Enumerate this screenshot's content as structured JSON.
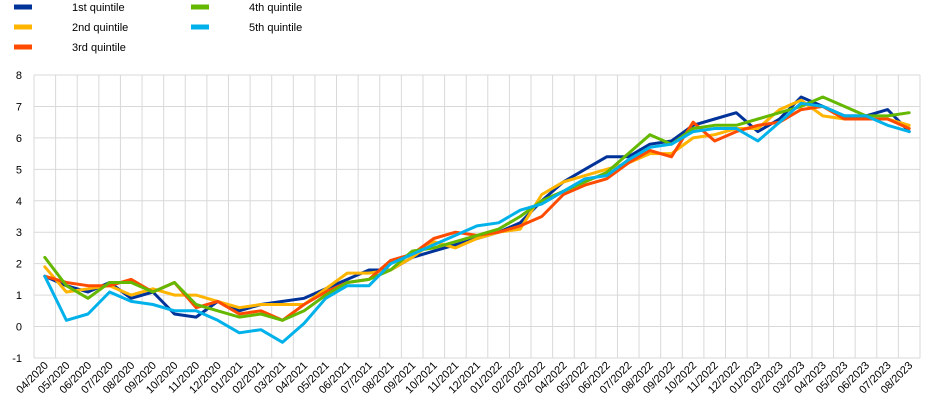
{
  "chart_data": {
    "type": "line",
    "title": "",
    "xlabel": "",
    "ylabel": "",
    "ylim": [
      -1,
      8
    ],
    "yticks": [
      "-1",
      "0",
      "1",
      "2",
      "3",
      "4",
      "5",
      "6",
      "7",
      "8"
    ],
    "grid": true,
    "legend_position": "top-left",
    "categories": [
      "04/2020",
      "05/2020",
      "06/2020",
      "07/2020",
      "08/2020",
      "09/2020",
      "10/2020",
      "11/2020",
      "12/2020",
      "01/2021",
      "02/2021",
      "03/2021",
      "04/2021",
      "05/2021",
      "06/2021",
      "07/2021",
      "08/2021",
      "09/2021",
      "10/2021",
      "11/2021",
      "12/2021",
      "01/2022",
      "02/2022",
      "03/2022",
      "04/2022",
      "05/2022",
      "06/2022",
      "07/2022",
      "08/2022",
      "09/2022",
      "10/2022",
      "11/2022",
      "12/2022",
      "01/2023",
      "02/2023",
      "03/2023",
      "04/2023",
      "05/2023",
      "06/2023",
      "07/2023",
      "08/2023"
    ],
    "series": [
      {
        "name": "1st quintile",
        "color": "#003399",
        "values": [
          1.6,
          1.3,
          1.1,
          1.4,
          0.9,
          1.1,
          0.4,
          0.3,
          0.8,
          0.5,
          0.7,
          0.8,
          0.9,
          1.2,
          1.5,
          1.8,
          1.8,
          2.2,
          2.4,
          2.6,
          2.8,
          3.0,
          3.3,
          4.0,
          4.6,
          5.0,
          5.4,
          5.4,
          5.8,
          5.9,
          6.4,
          6.6,
          6.8,
          6.2,
          6.6,
          7.3,
          7.0,
          6.7,
          6.7,
          6.9,
          6.2
        ]
      },
      {
        "name": "2nd quintile",
        "color": "#FFB400",
        "values": [
          1.9,
          1.1,
          1.2,
          1.3,
          1.0,
          1.2,
          1.0,
          1.0,
          0.8,
          0.6,
          0.7,
          0.7,
          0.7,
          1.2,
          1.7,
          1.7,
          1.8,
          2.2,
          2.7,
          2.5,
          2.8,
          3.0,
          3.1,
          4.2,
          4.6,
          4.8,
          5.0,
          5.2,
          5.5,
          5.5,
          6.0,
          6.1,
          6.3,
          6.3,
          6.9,
          7.2,
          6.7,
          6.6,
          6.6,
          6.6,
          6.4
        ]
      },
      {
        "name": "3rd quintile",
        "color": "#FF4B00",
        "values": [
          1.6,
          1.4,
          1.3,
          1.3,
          1.5,
          1.1,
          1.4,
          0.6,
          0.8,
          0.4,
          0.5,
          0.2,
          0.7,
          1.1,
          1.4,
          1.5,
          2.1,
          2.3,
          2.8,
          3.0,
          2.9,
          3.0,
          3.2,
          3.5,
          4.2,
          4.5,
          4.7,
          5.2,
          5.6,
          5.4,
          6.5,
          5.9,
          6.2,
          6.4,
          6.5,
          6.9,
          7.0,
          6.6,
          6.6,
          6.6,
          6.3
        ]
      },
      {
        "name": "4th quintile",
        "color": "#65B800",
        "values": [
          2.2,
          1.3,
          0.9,
          1.4,
          1.4,
          1.1,
          1.4,
          0.7,
          0.5,
          0.3,
          0.4,
          0.2,
          0.5,
          1.0,
          1.4,
          1.5,
          1.8,
          2.4,
          2.5,
          2.7,
          2.9,
          3.1,
          3.5,
          4.0,
          4.3,
          4.6,
          4.9,
          5.5,
          6.1,
          5.8,
          6.3,
          6.4,
          6.4,
          6.6,
          6.8,
          7.0,
          7.3,
          7.0,
          6.7,
          6.7,
          6.8
        ]
      },
      {
        "name": "5th quintile",
        "color": "#00B1EA",
        "values": [
          1.6,
          0.2,
          0.4,
          1.1,
          0.8,
          0.7,
          0.5,
          0.5,
          0.2,
          -0.2,
          -0.1,
          -0.5,
          0.1,
          0.9,
          1.3,
          1.3,
          2.0,
          2.3,
          2.6,
          2.9,
          3.2,
          3.3,
          3.7,
          3.9,
          4.3,
          4.7,
          4.8,
          5.3,
          5.7,
          5.8,
          6.2,
          6.3,
          6.3,
          5.9,
          6.5,
          7.1,
          7.0,
          6.7,
          6.7,
          6.4,
          6.2
        ]
      }
    ]
  }
}
